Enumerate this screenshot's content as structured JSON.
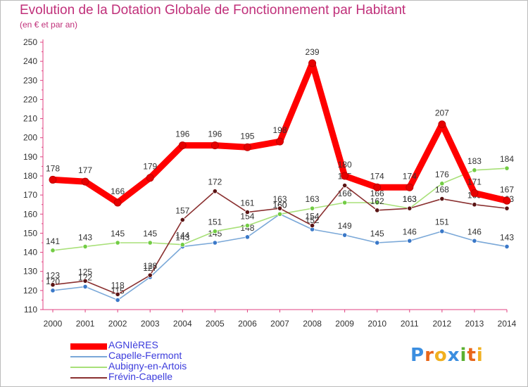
{
  "title": "Evolution de la Dotation Globale de Fonctionnement par Habitant",
  "subtitle": "(en € et par an)",
  "logo": {
    "text": "Proxiti",
    "letters": [
      "P",
      "r",
      "o",
      "x",
      "i",
      "t",
      "i"
    ],
    "colors": [
      "#3b8ee0",
      "#e8661a",
      "#f0b020",
      "#3b8ee0",
      "#5bb030",
      "#e8661a",
      "#f0b020"
    ]
  },
  "chart_data": {
    "type": "line",
    "title": "Evolution de la Dotation Globale de Fonctionnement par Habitant",
    "subtitle": "(en € et par an)",
    "xlabel": "",
    "ylabel": "",
    "ylim": [
      110,
      250
    ],
    "ytick_step": 10,
    "grid": false,
    "legend": "bottom-left",
    "categories": [
      "2000",
      "2001",
      "2002",
      "2003",
      "2004",
      "2005",
      "2006",
      "2007",
      "2008",
      "2009",
      "2010",
      "2011",
      "2012",
      "2013",
      "2014"
    ],
    "series": [
      {
        "name": "AGNIèRES",
        "color": "#ff0000",
        "marker": "#e60000",
        "highlight": true,
        "values": [
          178,
          177,
          166,
          179,
          196,
          196,
          195,
          198,
          239,
          180,
          174,
          174,
          207,
          171,
          167
        ],
        "labels": [
          "178",
          "177",
          "166",
          "179",
          "196",
          "196",
          "195",
          "198",
          "239",
          "180",
          "174",
          "174",
          "207",
          "171",
          "167"
        ]
      },
      {
        "name": "Capelle-Fermont",
        "color": "#7aa8d8",
        "marker": "#3a78c8",
        "values": [
          120,
          122,
          115,
          127,
          143,
          145,
          148,
          160,
          152,
          149,
          145,
          146,
          151,
          146,
          143
        ],
        "labels": [
          "120",
          "122",
          "115",
          "127",
          "143",
          "145",
          "148",
          "160",
          "152",
          "149",
          "145",
          "146",
          "151",
          "146",
          "143"
        ]
      },
      {
        "name": "Aubigny-en-Artois",
        "color": "#a8e078",
        "marker": "#72cc44",
        "values": [
          141,
          143,
          145,
          145,
          144,
          151,
          154,
          160,
          163,
          166,
          166,
          163,
          176,
          183,
          184
        ],
        "labels": [
          "141",
          "143",
          "145",
          "145",
          "144",
          "151",
          "154",
          "160",
          "163",
          "166",
          "166",
          "163",
          "176",
          "183",
          "184"
        ]
      },
      {
        "name": "Frévin-Capelle",
        "color": "#8a3030",
        "marker": "#5a1414",
        "values": [
          123,
          125,
          118,
          128,
          157,
          172,
          161,
          163,
          154,
          175,
          162,
          163,
          168,
          165,
          163
        ],
        "labels": [
          "123",
          "125",
          "118",
          "128",
          "157",
          "172",
          "161",
          "163",
          "154",
          "175",
          "162",
          "163",
          "168",
          "165",
          "163"
        ]
      }
    ]
  }
}
